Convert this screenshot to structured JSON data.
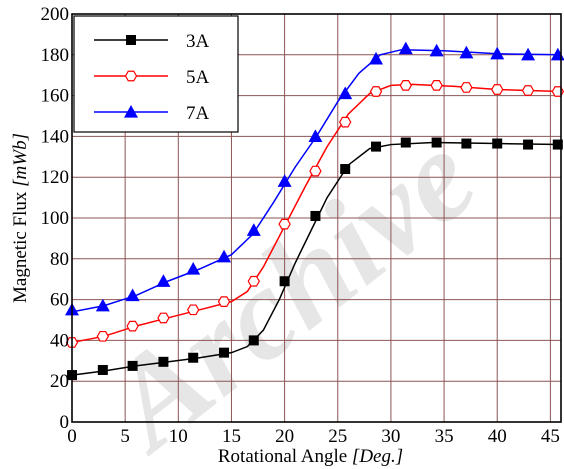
{
  "chart_data": {
    "type": "line",
    "xlabel": "Rotational Angle",
    "xlabel_unit": "[Deg.]",
    "ylabel": "Magnetic Flux",
    "ylabel_unit": "[mWb]",
    "xlim": [
      0,
      46
    ],
    "ylim": [
      0,
      200
    ],
    "xticks": [
      0,
      5,
      10,
      15,
      20,
      25,
      30,
      35,
      40,
      45
    ],
    "yticks": [
      0,
      20,
      40,
      60,
      80,
      100,
      120,
      140,
      160,
      180,
      200
    ],
    "grid": true,
    "legend_position": "top-left",
    "watermark": "Archive",
    "series": [
      {
        "name": "3A",
        "color": "#000000",
        "marker": "square",
        "curve": [
          [
            0,
            23
          ],
          [
            3,
            25
          ],
          [
            6,
            27.5
          ],
          [
            9,
            29.5
          ],
          [
            12,
            31.5
          ],
          [
            15,
            34
          ],
          [
            16.5,
            37
          ],
          [
            18,
            45
          ],
          [
            19.5,
            60
          ],
          [
            21,
            78
          ],
          [
            22.5,
            94
          ],
          [
            24,
            110
          ],
          [
            26,
            126
          ],
          [
            28,
            134
          ],
          [
            30,
            136
          ],
          [
            34,
            137
          ],
          [
            40,
            136.5
          ],
          [
            46,
            136
          ]
        ],
        "markers": [
          [
            0,
            23
          ],
          [
            2.9,
            25.5
          ],
          [
            5.7,
            27.5
          ],
          [
            8.6,
            29.5
          ],
          [
            11.4,
            31.5
          ],
          [
            14.3,
            34
          ],
          [
            17.1,
            40
          ],
          [
            20,
            69
          ],
          [
            22.9,
            101
          ],
          [
            25.7,
            124
          ],
          [
            28.6,
            135
          ],
          [
            31.4,
            137
          ],
          [
            34.3,
            137
          ],
          [
            37.1,
            136.5
          ],
          [
            40,
            136.5
          ],
          [
            42.9,
            136
          ],
          [
            45.7,
            136
          ]
        ]
      },
      {
        "name": "5A",
        "color": "#ff0000",
        "marker": "hexagon",
        "curve": [
          [
            0,
            39
          ],
          [
            3,
            42
          ],
          [
            6,
            47
          ],
          [
            9,
            51
          ],
          [
            12,
            55
          ],
          [
            15,
            59
          ],
          [
            16.5,
            64
          ],
          [
            18,
            76
          ],
          [
            20,
            96
          ],
          [
            22,
            116
          ],
          [
            24,
            135
          ],
          [
            26,
            151
          ],
          [
            28,
            161
          ],
          [
            30,
            165
          ],
          [
            32,
            165.5
          ],
          [
            36,
            164.5
          ],
          [
            40,
            163
          ],
          [
            46,
            162
          ]
        ],
        "markers": [
          [
            0,
            39
          ],
          [
            2.9,
            42
          ],
          [
            5.7,
            47
          ],
          [
            8.6,
            51
          ],
          [
            11.4,
            55
          ],
          [
            14.3,
            59
          ],
          [
            17.1,
            69
          ],
          [
            20,
            97
          ],
          [
            22.9,
            123
          ],
          [
            25.7,
            147
          ],
          [
            28.6,
            162
          ],
          [
            31.4,
            165
          ],
          [
            34.3,
            165
          ],
          [
            37.1,
            164
          ],
          [
            40,
            163
          ],
          [
            42.9,
            162.5
          ],
          [
            45.7,
            162
          ]
        ]
      },
      {
        "name": "7A",
        "color": "#0000ff",
        "marker": "triangle",
        "curve": [
          [
            0,
            54
          ],
          [
            3,
            57
          ],
          [
            6,
            62
          ],
          [
            9,
            69
          ],
          [
            12,
            75
          ],
          [
            15,
            82
          ],
          [
            17,
            92
          ],
          [
            19,
            108
          ],
          [
            21,
            125
          ],
          [
            23,
            140
          ],
          [
            25,
            157
          ],
          [
            27,
            171
          ],
          [
            29,
            180
          ],
          [
            31,
            182.5
          ],
          [
            35,
            182
          ],
          [
            40,
            180.5
          ],
          [
            46,
            180
          ]
        ],
        "markers": [
          [
            0,
            55
          ],
          [
            2.9,
            57
          ],
          [
            5.7,
            62
          ],
          [
            8.6,
            69
          ],
          [
            11.4,
            75
          ],
          [
            14.3,
            81
          ],
          [
            17.1,
            94
          ],
          [
            20,
            118
          ],
          [
            22.9,
            140
          ],
          [
            25.7,
            161
          ],
          [
            28.6,
            178
          ],
          [
            31.4,
            183
          ],
          [
            34.3,
            182
          ],
          [
            37.1,
            181
          ],
          [
            40,
            180.5
          ],
          [
            42.9,
            180
          ],
          [
            45.7,
            180
          ]
        ]
      }
    ]
  }
}
